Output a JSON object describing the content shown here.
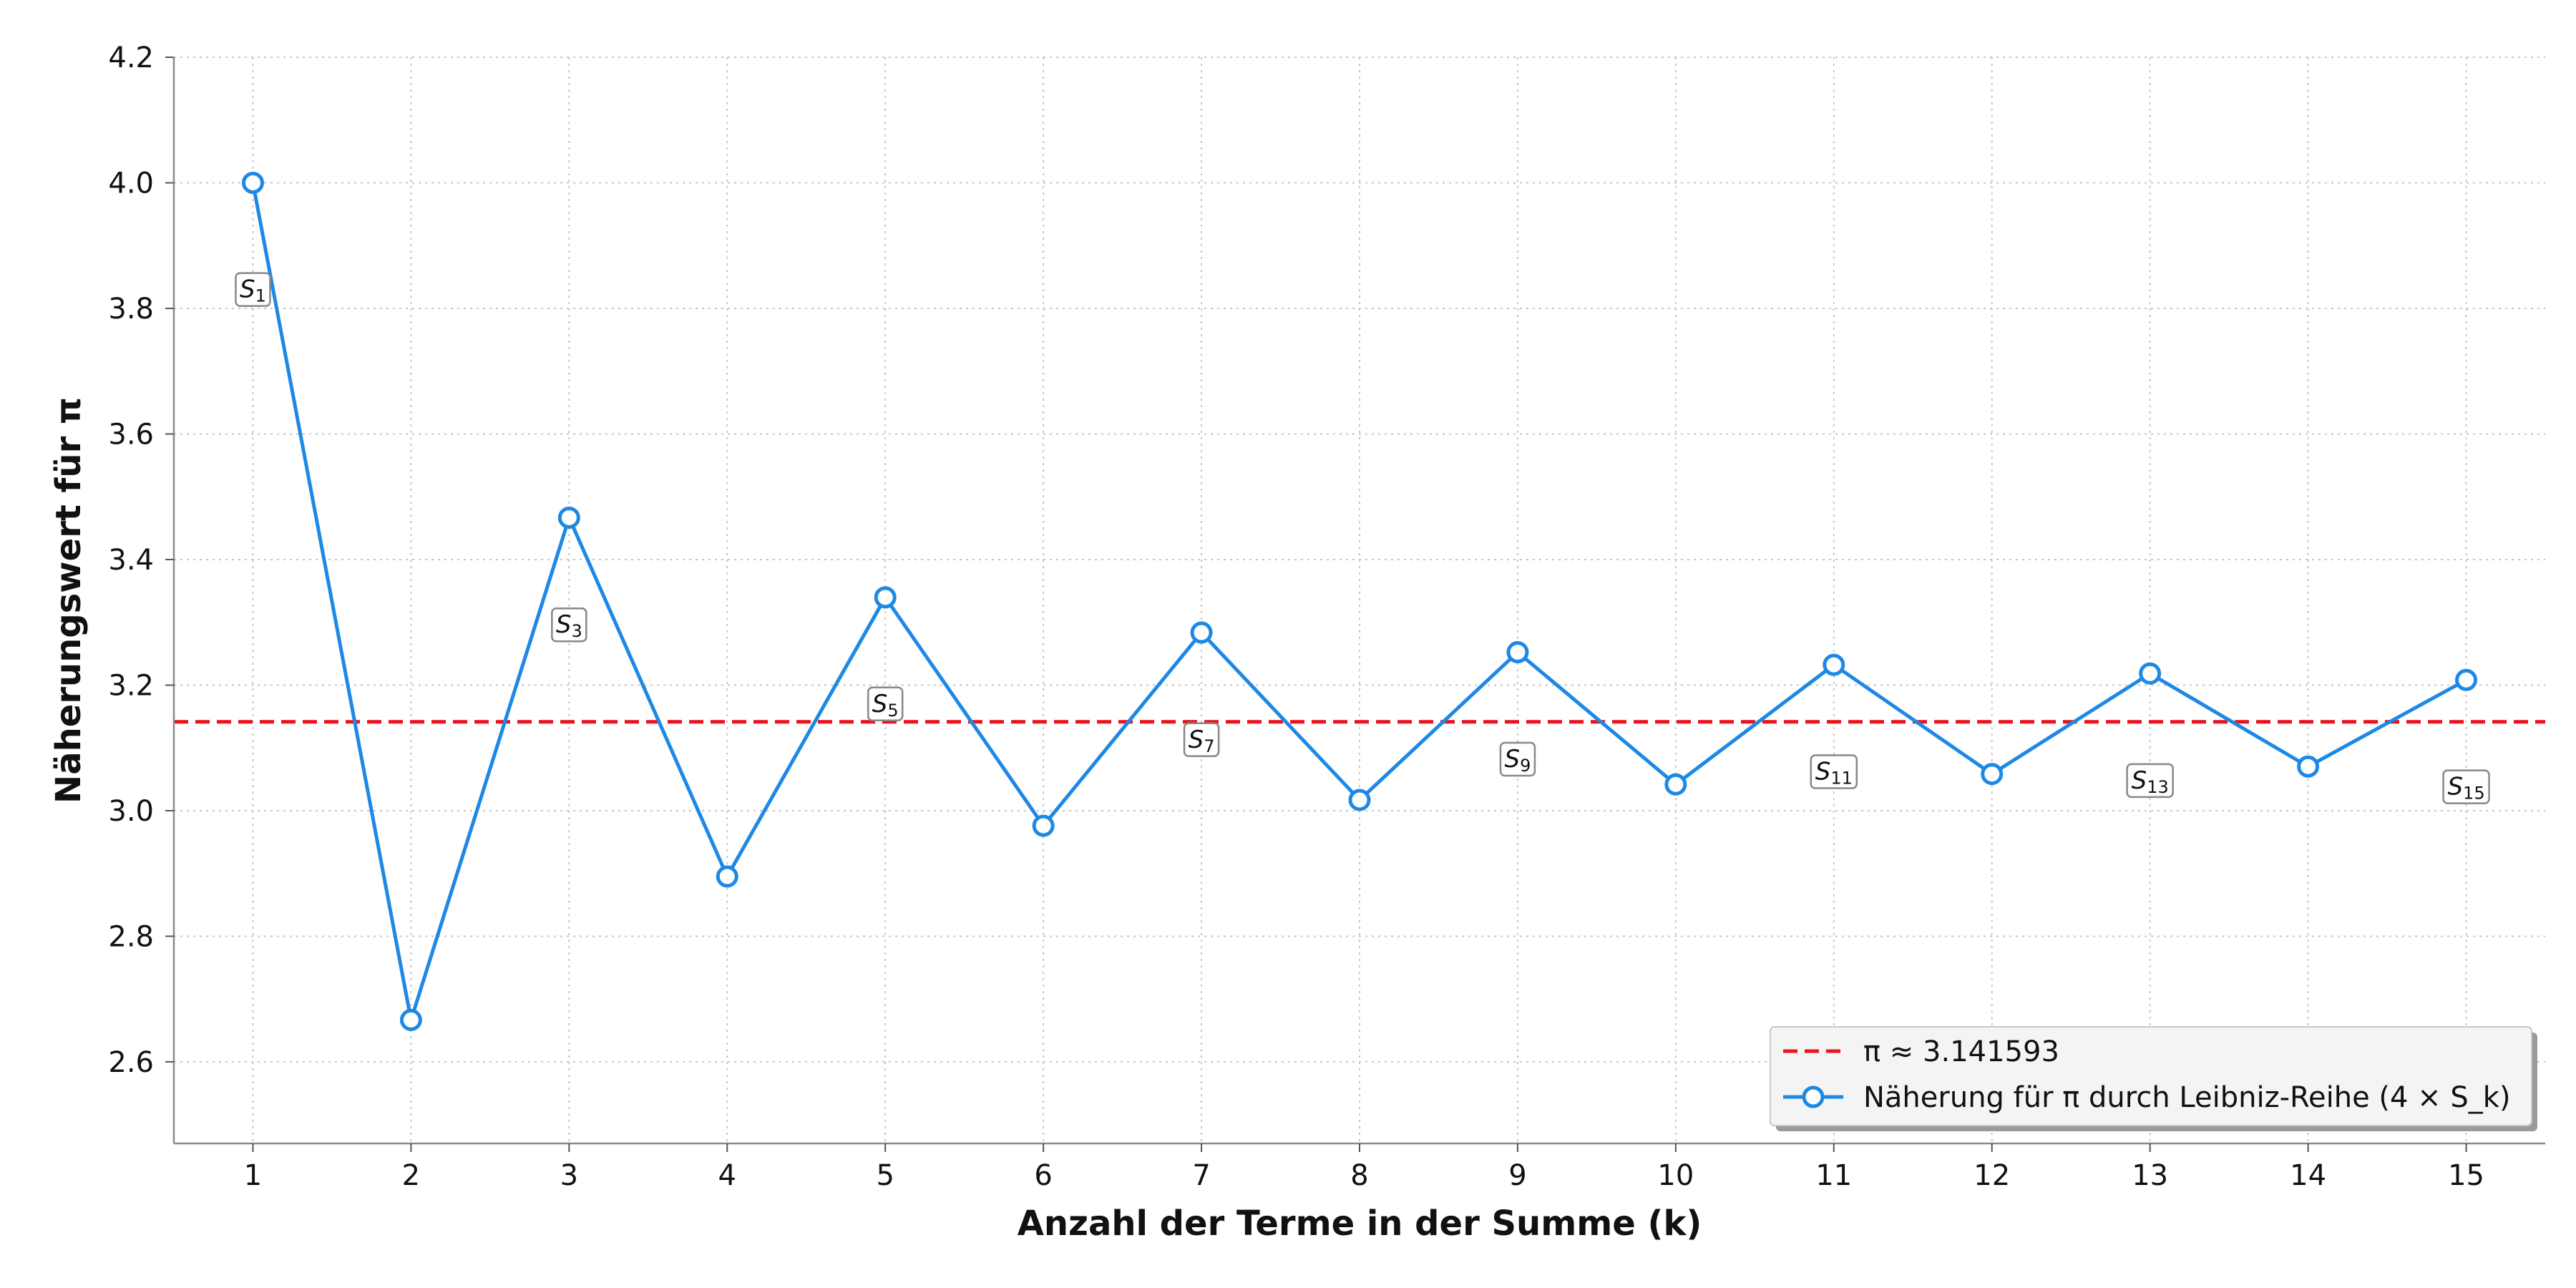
{
  "chart_data": {
    "type": "line",
    "xlabel": "Anzahl der Terme in der Summe (k)",
    "ylabel": "Näherungswert für π",
    "xlim": [
      0.5,
      15.5
    ],
    "ylim": [
      2.47,
      4.2
    ],
    "x_ticks": [
      1,
      2,
      3,
      4,
      5,
      6,
      7,
      8,
      9,
      10,
      11,
      12,
      13,
      14,
      15
    ],
    "y_ticks": [
      2.6,
      2.8,
      3.0,
      3.2,
      3.4,
      3.6,
      3.8,
      4.0,
      4.2
    ],
    "grid": true,
    "legend_position": "lower-right",
    "reference_line": {
      "label": "π ≈ 3.141593",
      "value": 3.141593,
      "color": "#e8141e",
      "style": "dashed"
    },
    "series": [
      {
        "name": "Näherung für π durch Leibniz-Reihe (4 × S_k)",
        "color": "#1e88e5",
        "x": [
          1,
          2,
          3,
          4,
          5,
          6,
          7,
          8,
          9,
          10,
          11,
          12,
          13,
          14,
          15
        ],
        "values": [
          4.0,
          2.6667,
          3.4667,
          2.8952,
          3.3397,
          2.976,
          3.2837,
          3.0171,
          3.2524,
          3.0418,
          3.2323,
          3.0584,
          3.2184,
          3.0703,
          3.2082
        ]
      }
    ],
    "annotations": [
      {
        "x": 1,
        "y": 3.83,
        "main": "S",
        "sub": "1"
      },
      {
        "x": 3,
        "y": 3.296,
        "main": "S",
        "sub": "3"
      },
      {
        "x": 5,
        "y": 3.17,
        "main": "S",
        "sub": "5"
      },
      {
        "x": 7,
        "y": 3.113,
        "main": "S",
        "sub": "7"
      },
      {
        "x": 9,
        "y": 3.082,
        "main": "S",
        "sub": "9"
      },
      {
        "x": 11,
        "y": 3.062,
        "main": "S",
        "sub": "11"
      },
      {
        "x": 13,
        "y": 3.048,
        "main": "S",
        "sub": "13"
      },
      {
        "x": 15,
        "y": 3.038,
        "main": "S",
        "sub": "15"
      }
    ]
  }
}
